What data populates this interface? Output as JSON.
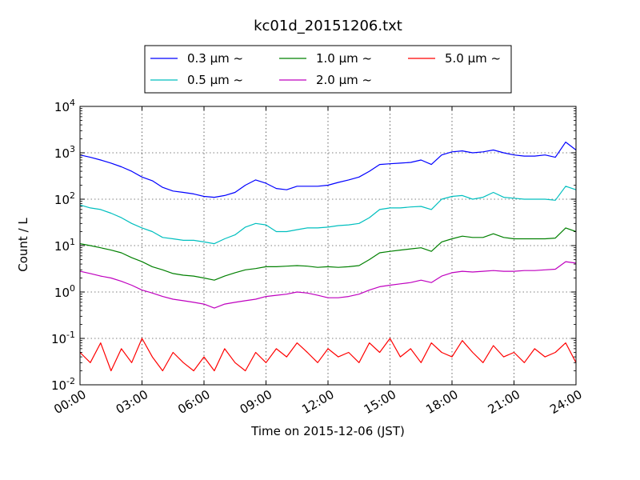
{
  "chart_data": {
    "type": "line",
    "title": "kc01d_20151206.txt",
    "xlabel": "Time on 2015-12-06 (JST)",
    "ylabel": "Count / L",
    "y_scale": "log",
    "ylim_exponents": [
      -2,
      4
    ],
    "ytick_labels": [
      {
        "base": "10",
        "exp": "-2"
      },
      {
        "base": "10",
        "exp": "-1"
      },
      {
        "base": "10",
        "exp": "0"
      },
      {
        "base": "10",
        "exp": "1"
      },
      {
        "base": "10",
        "exp": "2"
      },
      {
        "base": "10",
        "exp": "3"
      },
      {
        "base": "10",
        "exp": "4"
      }
    ],
    "xlim_hours": [
      0,
      24
    ],
    "xtick_labels": [
      "00:00",
      "03:00",
      "06:00",
      "09:00",
      "12:00",
      "15:00",
      "18:00",
      "21:00",
      "24:00"
    ],
    "grid": true,
    "legend_position": "top-center",
    "series": [
      {
        "name": "0.3 μm ~",
        "color": "#0000ff",
        "x": [
          0,
          0.5,
          1,
          1.5,
          2,
          2.5,
          3,
          3.5,
          4,
          4.5,
          5,
          5.5,
          6,
          6.5,
          7,
          7.5,
          8,
          8.5,
          9,
          9.5,
          10,
          10.5,
          11,
          11.5,
          12,
          12.5,
          13,
          13.5,
          14,
          14.5,
          15,
          15.5,
          16,
          16.5,
          17,
          17.5,
          18,
          18.5,
          19,
          19.5,
          20,
          20.5,
          21,
          21.5,
          22,
          22.5,
          23,
          23.5,
          24
        ],
        "y": [
          900,
          800,
          700,
          600,
          500,
          400,
          300,
          250,
          180,
          150,
          140,
          130,
          115,
          110,
          120,
          140,
          200,
          260,
          220,
          170,
          160,
          190,
          190,
          190,
          200,
          230,
          260,
          300,
          400,
          560,
          580,
          600,
          620,
          700,
          560,
          900,
          1050,
          1100,
          1000,
          1050,
          1150,
          1000,
          900,
          850,
          850,
          900,
          800,
          1700,
          1150
        ]
      },
      {
        "name": "0.5 μm ~",
        "color": "#00bfbf",
        "x": [
          0,
          0.5,
          1,
          1.5,
          2,
          2.5,
          3,
          3.5,
          4,
          4.5,
          5,
          5.5,
          6,
          6.5,
          7,
          7.5,
          8,
          8.5,
          9,
          9.5,
          10,
          10.5,
          11,
          11.5,
          12,
          12.5,
          13,
          13.5,
          14,
          14.5,
          15,
          15.5,
          16,
          16.5,
          17,
          17.5,
          18,
          18.5,
          19,
          19.5,
          20,
          20.5,
          21,
          21.5,
          22,
          22.5,
          23,
          23.5,
          24
        ],
        "y": [
          75,
          65,
          60,
          50,
          40,
          30,
          24,
          20,
          15,
          14,
          13,
          13,
          12,
          11,
          14,
          17,
          25,
          30,
          28,
          20,
          20,
          22,
          24,
          24,
          25,
          27,
          28,
          30,
          40,
          60,
          65,
          65,
          68,
          70,
          60,
          100,
          115,
          120,
          100,
          110,
          140,
          110,
          105,
          100,
          100,
          100,
          95,
          190,
          160
        ]
      },
      {
        "name": "1.0 μm ~",
        "color": "#008000",
        "x": [
          0,
          0.5,
          1,
          1.5,
          2,
          2.5,
          3,
          3.5,
          4,
          4.5,
          5,
          5.5,
          6,
          6.5,
          7,
          7.5,
          8,
          8.5,
          9,
          9.5,
          10,
          10.5,
          11,
          11.5,
          12,
          12.5,
          13,
          13.5,
          14,
          14.5,
          15,
          15.5,
          16,
          16.5,
          17,
          17.5,
          18,
          18.5,
          19,
          19.5,
          20,
          20.5,
          21,
          21.5,
          22,
          22.5,
          23,
          23.5,
          24
        ],
        "y": [
          11,
          10,
          9,
          8,
          7,
          5.5,
          4.5,
          3.5,
          3,
          2.5,
          2.3,
          2.2,
          2,
          1.8,
          2.2,
          2.6,
          3,
          3.2,
          3.5,
          3.5,
          3.6,
          3.7,
          3.6,
          3.4,
          3.5,
          3.4,
          3.5,
          3.7,
          5,
          7,
          7.5,
          8,
          8.5,
          9,
          7.5,
          12,
          14,
          16,
          15,
          15,
          18,
          15,
          14,
          14,
          14,
          14,
          14.5,
          24,
          20
        ]
      },
      {
        "name": "2.0 μm ~",
        "color": "#bf00bf",
        "x": [
          0,
          0.5,
          1,
          1.5,
          2,
          2.5,
          3,
          3.5,
          4,
          4.5,
          5,
          5.5,
          6,
          6.5,
          7,
          7.5,
          8,
          8.5,
          9,
          9.5,
          10,
          10.5,
          11,
          11.5,
          12,
          12.5,
          13,
          13.5,
          14,
          14.5,
          15,
          15.5,
          16,
          16.5,
          17,
          17.5,
          18,
          18.5,
          19,
          19.5,
          20,
          20.5,
          21,
          21.5,
          22,
          22.5,
          23,
          23.5,
          24
        ],
        "y": [
          2.8,
          2.5,
          2.2,
          2,
          1.7,
          1.4,
          1.1,
          0.95,
          0.8,
          0.7,
          0.65,
          0.6,
          0.55,
          0.45,
          0.55,
          0.6,
          0.65,
          0.7,
          0.8,
          0.85,
          0.9,
          1,
          0.95,
          0.85,
          0.75,
          0.75,
          0.8,
          0.9,
          1.1,
          1.3,
          1.4,
          1.5,
          1.6,
          1.8,
          1.6,
          2.2,
          2.6,
          2.8,
          2.7,
          2.8,
          2.9,
          2.8,
          2.8,
          2.9,
          2.9,
          3,
          3.1,
          4.5,
          4.2
        ]
      },
      {
        "name": "5.0 μm ~",
        "color": "#ff0000",
        "x": [
          0,
          0.5,
          1,
          1.5,
          2,
          2.5,
          3,
          3.5,
          4,
          4.5,
          5,
          5.5,
          6,
          6.5,
          7,
          7.5,
          8,
          8.5,
          9,
          9.5,
          10,
          10.5,
          11,
          11.5,
          12,
          12.5,
          13,
          13.5,
          14,
          14.5,
          15,
          15.5,
          16,
          16.5,
          17,
          17.5,
          18,
          18.5,
          19,
          19.5,
          20,
          20.5,
          21,
          21.5,
          22,
          22.5,
          23,
          23.5,
          24
        ],
        "y": [
          0.05,
          0.03,
          0.08,
          0.02,
          0.06,
          0.03,
          0.1,
          0.04,
          0.02,
          0.05,
          0.03,
          0.02,
          0.04,
          0.02,
          0.06,
          0.03,
          0.02,
          0.05,
          0.03,
          0.06,
          0.04,
          0.08,
          0.05,
          0.03,
          0.06,
          0.04,
          0.05,
          0.03,
          0.08,
          0.05,
          0.1,
          0.04,
          0.06,
          0.03,
          0.08,
          0.05,
          0.04,
          0.09,
          0.05,
          0.03,
          0.07,
          0.04,
          0.05,
          0.03,
          0.06,
          0.04,
          0.05,
          0.08,
          0.03
        ]
      }
    ]
  }
}
